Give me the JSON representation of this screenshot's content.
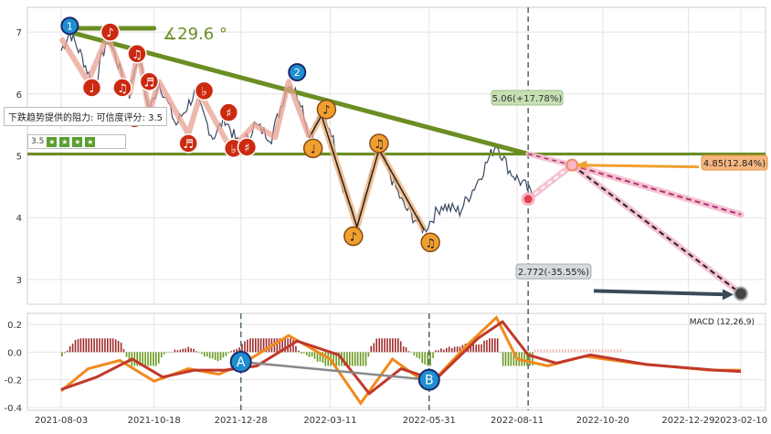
{
  "chart_data": [
    {
      "type": "line",
      "panel": "price",
      "ylim": [
        2.6,
        7.4
      ],
      "y_ticks": [
        "3",
        "4",
        "5",
        "6",
        "7"
      ],
      "grid": true,
      "annotations": {
        "angle_label": "∡29.6 °",
        "resistance_tooltip": "下跌趋势提供的阻力: 可信度评分: 3.5",
        "rating_value": "3.5",
        "target_up": "5.06(+17.78%)",
        "target_mid": "4.85(12.84%)",
        "target_down": "2.772(-35.55%)",
        "wave_labels": [
          "1",
          "2"
        ]
      },
      "series": [
        {
          "values": [
            {
              "x": "2021-08-03",
              "y": 6.7
            },
            {
              "x": "2021-08-10",
              "y": 7.0
            },
            {
              "x": "2021-08-20",
              "y": 6.6
            },
            {
              "x": "2021-08-30",
              "y": 6.1
            },
            {
              "x": "2021-09-10",
              "y": 6.95
            },
            {
              "x": "2021-09-20",
              "y": 6.4
            },
            {
              "x": "2021-09-28",
              "y": 6.0
            },
            {
              "x": "2021-10-05",
              "y": 6.7
            },
            {
              "x": "2021-10-14",
              "y": 5.7
            },
            {
              "x": "2021-10-22",
              "y": 6.2
            },
            {
              "x": "2021-11-05",
              "y": 5.5
            },
            {
              "x": "2021-11-20",
              "y": 6.0
            },
            {
              "x": "2021-12-05",
              "y": 5.3
            },
            {
              "x": "2021-12-15",
              "y": 5.6
            },
            {
              "x": "2021-12-28",
              "y": 5.1
            },
            {
              "x": "2022-01-08",
              "y": 5.5
            },
            {
              "x": "2022-01-22",
              "y": 5.3
            },
            {
              "x": "2022-02-05",
              "y": 6.2
            },
            {
              "x": "2022-02-15",
              "y": 5.9
            },
            {
              "x": "2022-02-22",
              "y": 5.3
            },
            {
              "x": "2022-03-04",
              "y": 5.7
            },
            {
              "x": "2022-03-12",
              "y": 5.4
            },
            {
              "x": "2022-03-20",
              "y": 4.6
            },
            {
              "x": "2022-04-02",
              "y": 3.85
            },
            {
              "x": "2022-04-20",
              "y": 5.1
            },
            {
              "x": "2022-05-10",
              "y": 4.2
            },
            {
              "x": "2022-05-27",
              "y": 3.8
            },
            {
              "x": "2022-06-10",
              "y": 4.2
            },
            {
              "x": "2022-06-25",
              "y": 4.1
            },
            {
              "x": "2022-07-10",
              "y": 4.6
            },
            {
              "x": "2022-07-25",
              "y": 5.2
            },
            {
              "x": "2022-08-05",
              "y": 4.75
            },
            {
              "x": "2022-08-18",
              "y": 4.5
            },
            {
              "x": "2022-08-25",
              "y": 4.3
            }
          ]
        }
      ]
    },
    {
      "type": "line",
      "panel": "macd",
      "title": "MACD (12,26,9)",
      "ylim": [
        -0.42,
        0.28
      ],
      "y_ticks": [
        "0.2",
        "0.0",
        "-0.2",
        "-0.4"
      ],
      "x_ticks": [
        "2021-08-03",
        "2021-10-18",
        "2021-12-28",
        "2022-03-11",
        "2022-05-31",
        "2022-08-11",
        "2022-10-20",
        "2022-12-29",
        "2023-02-10"
      ],
      "grid": true,
      "markers": [
        "A",
        "B"
      ],
      "series": [
        {
          "values": [
            {
              "x": "2021-08-03",
              "y": -0.28
            },
            {
              "x": "2021-08-25",
              "y": -0.12
            },
            {
              "x": "2021-09-20",
              "y": -0.06
            },
            {
              "x": "2021-10-18",
              "y": -0.21
            },
            {
              "x": "2021-11-15",
              "y": -0.12
            },
            {
              "x": "2021-12-10",
              "y": -0.16
            },
            {
              "x": "2021-12-28",
              "y": -0.09
            },
            {
              "x": "2022-02-05",
              "y": 0.12
            },
            {
              "x": "2022-03-11",
              "y": -0.05
            },
            {
              "x": "2022-04-05",
              "y": -0.37
            },
            {
              "x": "2022-05-01",
              "y": -0.05
            },
            {
              "x": "2022-05-31",
              "y": -0.24
            },
            {
              "x": "2022-07-01",
              "y": 0.05
            },
            {
              "x": "2022-07-25",
              "y": 0.25
            },
            {
              "x": "2022-08-11",
              "y": -0.05
            },
            {
              "x": "2022-09-05",
              "y": -0.1
            },
            {
              "x": "2022-10-05",
              "y": -0.03
            },
            {
              "x": "2022-11-15",
              "y": -0.08
            },
            {
              "x": "2023-01-15",
              "y": -0.13
            },
            {
              "x": "2023-02-10",
              "y": -0.13
            }
          ]
        },
        {
          "values": [
            {
              "x": "2021-08-03",
              "y": -0.27
            },
            {
              "x": "2021-09-01",
              "y": -0.18
            },
            {
              "x": "2021-09-30",
              "y": -0.05
            },
            {
              "x": "2021-10-25",
              "y": -0.18
            },
            {
              "x": "2021-11-20",
              "y": -0.13
            },
            {
              "x": "2021-12-15",
              "y": -0.13
            },
            {
              "x": "2022-01-10",
              "y": -0.1
            },
            {
              "x": "2022-02-12",
              "y": 0.08
            },
            {
              "x": "2022-03-18",
              "y": -0.02
            },
            {
              "x": "2022-04-12",
              "y": -0.3
            },
            {
              "x": "2022-05-08",
              "y": -0.12
            },
            {
              "x": "2022-06-05",
              "y": -0.2
            },
            {
              "x": "2022-07-10",
              "y": 0.1
            },
            {
              "x": "2022-07-30",
              "y": 0.22
            },
            {
              "x": "2022-08-20",
              "y": -0.02
            },
            {
              "x": "2022-09-12",
              "y": -0.08
            },
            {
              "x": "2022-10-10",
              "y": -0.02
            },
            {
              "x": "2022-11-25",
              "y": -0.09
            },
            {
              "x": "2023-01-20",
              "y": -0.13
            },
            {
              "x": "2023-02-10",
              "y": -0.14
            }
          ]
        }
      ]
    }
  ],
  "colors": {
    "price_line": "#3a4a62",
    "trend_green": "#6b8e23",
    "orange": "#f0a030",
    "red_marker": "#cc2a10",
    "blue_marker": "#1f8fd0",
    "pink": "#f4b8c8",
    "macd_orange": "#f08a1c",
    "macd_red": "#c0392b",
    "hist_red": "#a02a2a",
    "hist_green": "#6a9a20"
  }
}
